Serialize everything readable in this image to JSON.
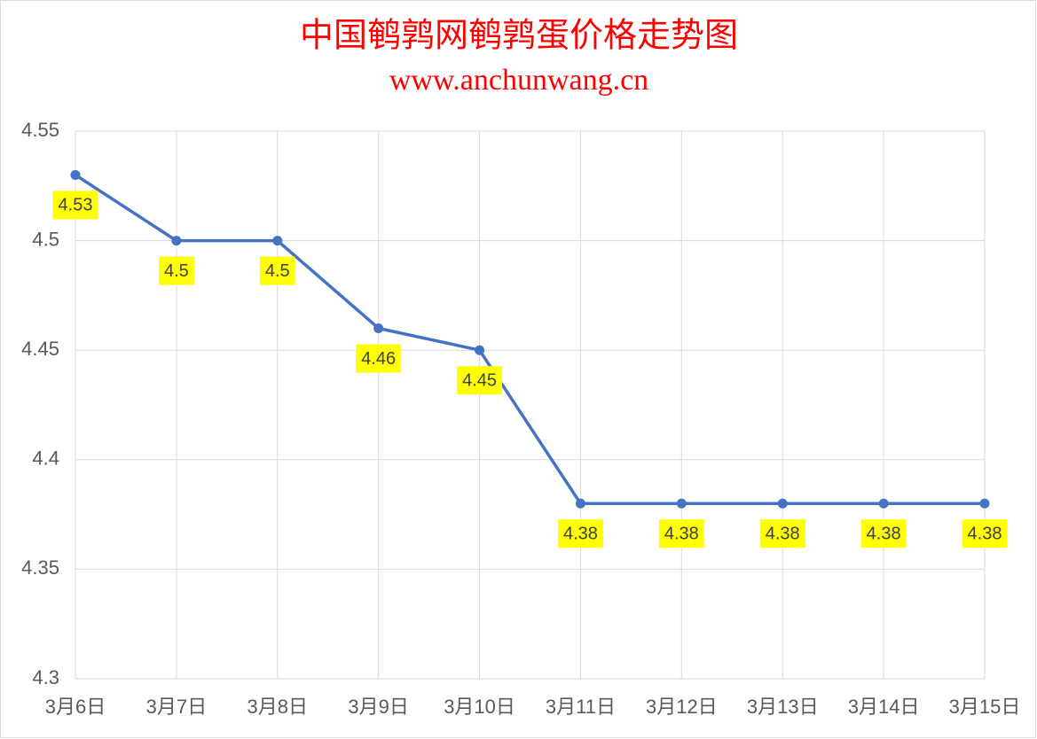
{
  "chart_data": {
    "type": "line",
    "title": "中国鹌鹑网鹌鹑蛋价格走势图",
    "subtitle": "www.anchunwang.cn",
    "categories": [
      "3月6日",
      "3月7日",
      "3月8日",
      "3月9日",
      "3月10日",
      "3月11日",
      "3月12日",
      "3月13日",
      "3月14日",
      "3月15日"
    ],
    "values": [
      4.53,
      4.5,
      4.5,
      4.46,
      4.45,
      4.38,
      4.38,
      4.38,
      4.38,
      4.38
    ],
    "color": "#4472c4",
    "ylim": [
      4.3,
      4.55
    ],
    "yticks": [
      4.3,
      4.35,
      4.4,
      4.45,
      4.5,
      4.55
    ],
    "grid": true,
    "data_labels": true,
    "label_background": "#ffff00"
  }
}
